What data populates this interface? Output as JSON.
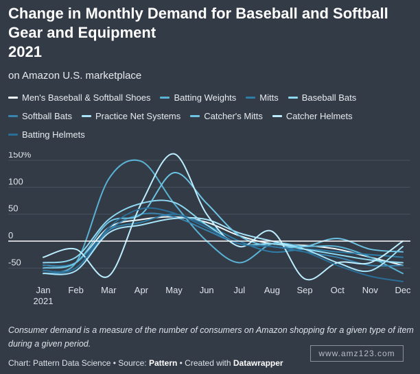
{
  "header": {
    "title_lines": [
      "Change in Monthly Demand for Baseball and Softball",
      "Gear and Equipment",
      "2021"
    ],
    "subtitle": "on Amazon U.S. marketplace"
  },
  "footer": {
    "note": "Consumer demand is a measure of the number of consumers on Amazon shopping for a given type of item during a given period.",
    "credit_prefix": "Chart: Pattern Data Science • Source: ",
    "credit_source": "Pattern",
    "credit_mid": " • Created with ",
    "credit_tool": "Datawrapper",
    "watermark": "www.amz123.com"
  },
  "chart_data": {
    "type": "line",
    "title": "Change in Monthly Demand for Baseball and Softball Gear and Equipment 2021",
    "subtitle": "on Amazon U.S. marketplace",
    "categories": [
      "Jan",
      "Feb",
      "Mar",
      "Apr",
      "May",
      "Jun",
      "Jul",
      "Aug",
      "Sep",
      "Oct",
      "Nov",
      "Dec"
    ],
    "x_tick_labels": [
      "Jan",
      "Feb",
      "Mar",
      "Apr",
      "May",
      "Jun",
      "Jul",
      "Aug",
      "Sep",
      "Oct",
      "Nov",
      "Dec"
    ],
    "x_year_label": "2021",
    "y_ticks": [
      150,
      100,
      50,
      0,
      -50
    ],
    "y_tick_labels": [
      "150%",
      "100",
      "50",
      "0",
      "-50"
    ],
    "ylim": [
      -70,
      160
    ],
    "grid": true,
    "legend_position": "top",
    "series": [
      {
        "name": "Men's Baseball & Softball Shoes",
        "color": "#f2fbff",
        "values": [
          -45,
          -40,
          25,
          40,
          45,
          35,
          10,
          -5,
          -8,
          -15,
          -30,
          -45
        ]
      },
      {
        "name": "Batting Weights",
        "color": "#5ab3d4",
        "values": [
          -55,
          -40,
          115,
          148,
          70,
          0,
          -40,
          -5,
          -10,
          -10,
          -30,
          -60
        ]
      },
      {
        "name": "Mitts",
        "color": "#2e7ea8",
        "values": [
          -45,
          -40,
          20,
          35,
          50,
          30,
          0,
          -20,
          -15,
          -20,
          -25,
          -30
        ]
      },
      {
        "name": "Baseball Bats",
        "color": "#8fd8f2",
        "values": [
          -40,
          -30,
          40,
          70,
          72,
          30,
          -5,
          -5,
          -15,
          -25,
          -35,
          -40
        ]
      },
      {
        "name": "Softball Bats",
        "color": "#3a85b0",
        "values": [
          -60,
          -50,
          20,
          50,
          45,
          20,
          -5,
          -10,
          -20,
          -30,
          -45,
          -45
        ]
      },
      {
        "name": "Practice Net Systems",
        "color": "#a8e4fa",
        "values": [
          -60,
          -55,
          15,
          30,
          42,
          40,
          15,
          0,
          -15,
          -40,
          -55,
          -10
        ]
      },
      {
        "name": "Catcher's Mitts",
        "color": "#6ec4e4",
        "values": [
          -50,
          -40,
          35,
          50,
          127,
          70,
          10,
          -10,
          -10,
          5,
          -15,
          -20
        ]
      },
      {
        "name": "Catcher Helmets",
        "color": "#bdeeff",
        "values": [
          -30,
          -15,
          -65,
          70,
          162,
          50,
          -10,
          18,
          -70,
          -40,
          -40,
          0
        ]
      },
      {
        "name": "Batting Helmets",
        "color": "#2a6f98",
        "values": [
          -55,
          -50,
          25,
          60,
          52,
          25,
          -5,
          -10,
          -20,
          -45,
          -65,
          -75
        ]
      }
    ]
  }
}
